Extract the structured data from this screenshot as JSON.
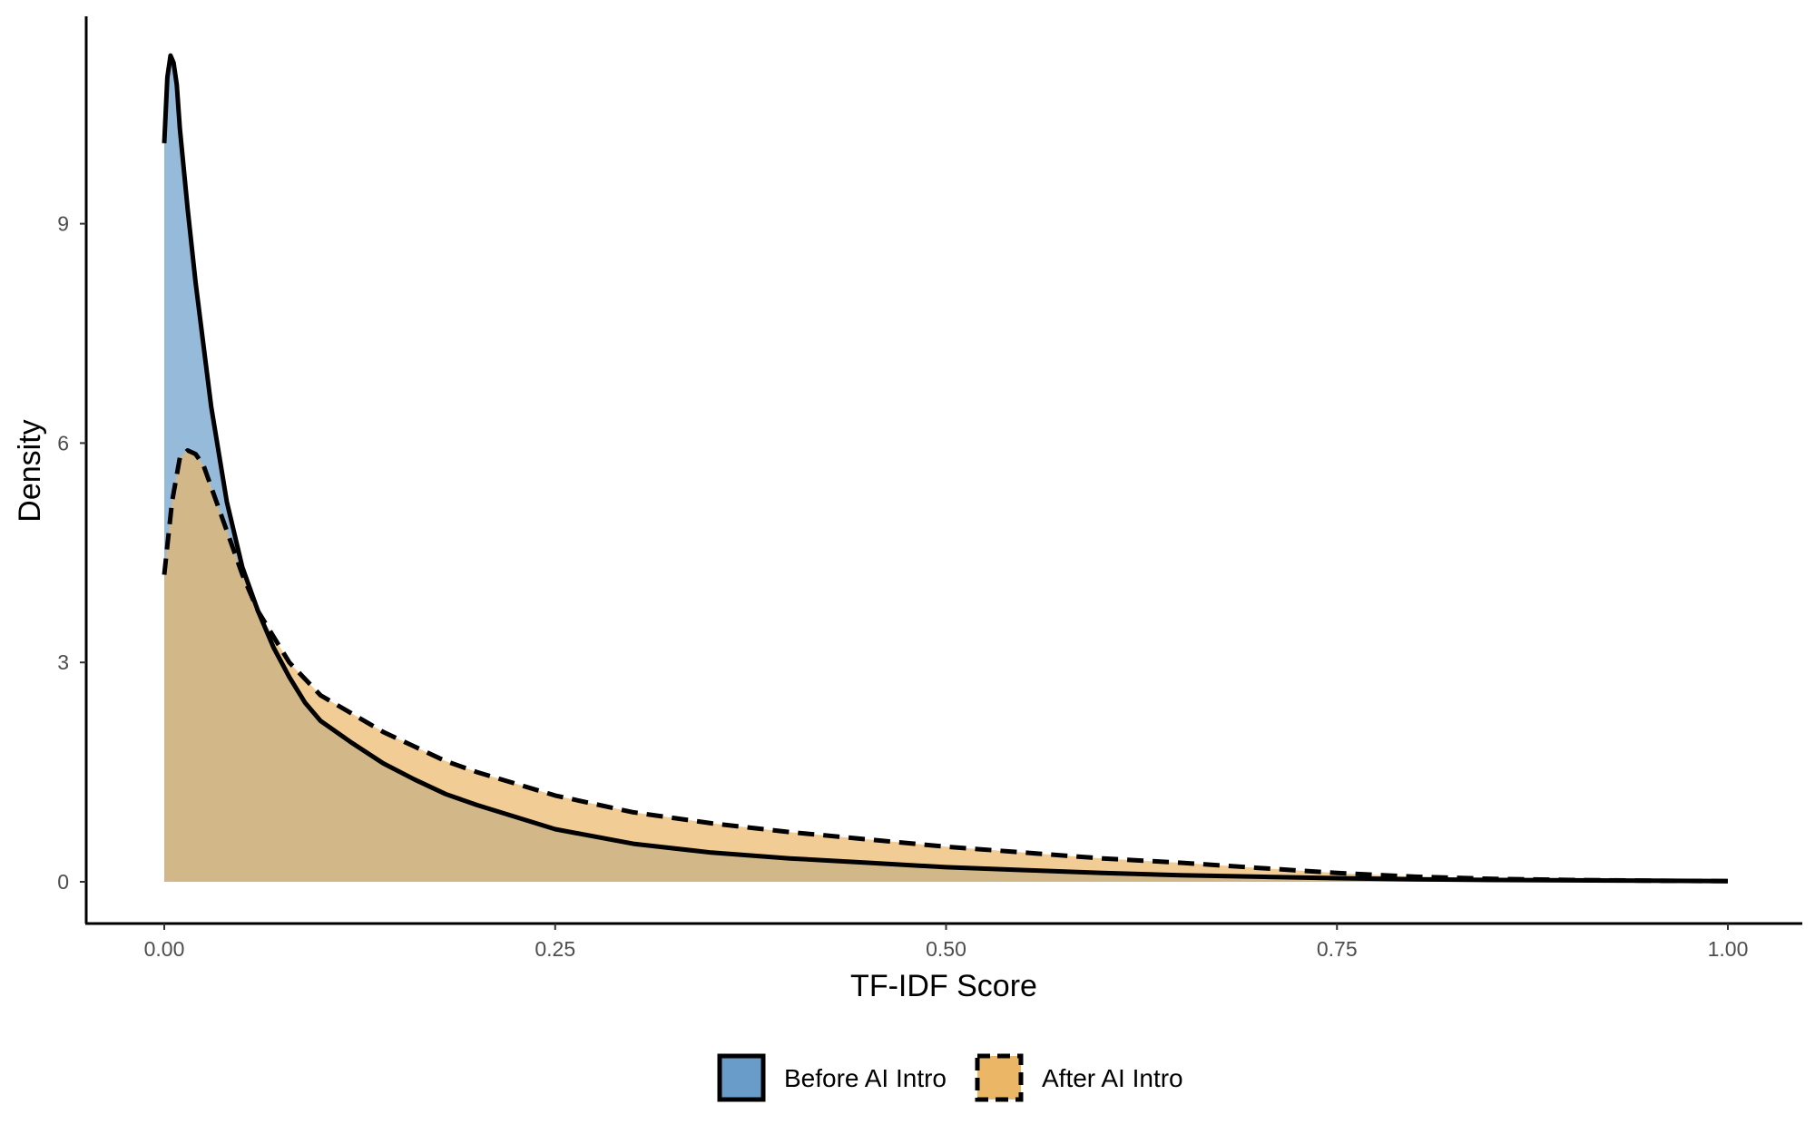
{
  "chart_data": {
    "type": "area",
    "title": "",
    "xlabel": "TF-IDF Score",
    "ylabel": "Density",
    "xlim": [
      -0.05,
      1.05
    ],
    "ylim": [
      -0.6,
      13
    ],
    "x_ticks": [
      0,
      0.25,
      0.5,
      0.75,
      1
    ],
    "x_tick_labels": [
      "0.00",
      "0.25",
      "0.50",
      "0.75",
      "1.00"
    ],
    "y_ticks": [
      0,
      3,
      6,
      9
    ],
    "y_tick_labels": [
      "0",
      "3",
      "6",
      "9"
    ],
    "grid": false,
    "legend_position": "bottom",
    "series": [
      {
        "name": "Before AI Intro",
        "fill": "#6a9cc9",
        "line_style": "solid",
        "x": [
          0,
          0.002,
          0.004,
          0.006,
          0.008,
          0.01,
          0.015,
          0.02,
          0.03,
          0.04,
          0.05,
          0.06,
          0.07,
          0.08,
          0.09,
          0.1,
          0.12,
          0.14,
          0.16,
          0.18,
          0.2,
          0.25,
          0.3,
          0.35,
          0.4,
          0.45,
          0.5,
          0.55,
          0.6,
          0.65,
          0.7,
          0.75,
          0.8,
          0.85,
          0.9,
          0.95,
          1
        ],
        "y": [
          10.1,
          11.0,
          11.3,
          11.2,
          10.9,
          10.3,
          9.2,
          8.2,
          6.5,
          5.2,
          4.3,
          3.7,
          3.2,
          2.8,
          2.45,
          2.2,
          1.9,
          1.62,
          1.4,
          1.2,
          1.05,
          0.72,
          0.52,
          0.4,
          0.32,
          0.26,
          0.2,
          0.16,
          0.12,
          0.09,
          0.07,
          0.05,
          0.035,
          0.025,
          0.02,
          0.015,
          0.01
        ]
      },
      {
        "name": "After AI Intro",
        "fill": "#ebb766",
        "line_style": "dashed",
        "x": [
          0,
          0.005,
          0.01,
          0.015,
          0.02,
          0.025,
          0.03,
          0.04,
          0.05,
          0.06,
          0.08,
          0.1,
          0.12,
          0.14,
          0.16,
          0.18,
          0.2,
          0.25,
          0.3,
          0.35,
          0.4,
          0.45,
          0.5,
          0.55,
          0.6,
          0.65,
          0.7,
          0.75,
          0.8,
          0.85,
          0.9,
          0.95,
          1
        ],
        "y": [
          4.2,
          5.2,
          5.8,
          5.9,
          5.85,
          5.7,
          5.4,
          4.8,
          4.2,
          3.7,
          3.0,
          2.55,
          2.3,
          2.05,
          1.85,
          1.65,
          1.5,
          1.18,
          0.95,
          0.8,
          0.68,
          0.58,
          0.48,
          0.4,
          0.32,
          0.26,
          0.19,
          0.12,
          0.07,
          0.04,
          0.025,
          0.015,
          0.01
        ]
      }
    ]
  }
}
